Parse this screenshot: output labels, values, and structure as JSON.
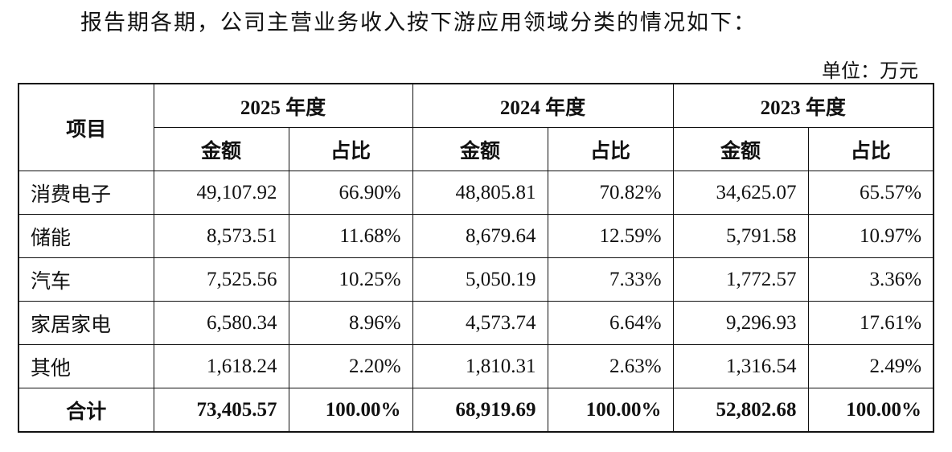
{
  "intro": "报告期各期，公司主营业务收入按下游应用领域分类的情况如下：",
  "unit": "单位：万元",
  "table": {
    "corner": "项目",
    "years": [
      "2025 年度",
      "2024 年度",
      "2023 年度"
    ],
    "subheaders": [
      "金额",
      "占比"
    ],
    "rows": [
      [
        "消费电子",
        "49,107.92",
        "66.90%",
        "48,805.81",
        "70.82%",
        "34,625.07",
        "65.57%"
      ],
      [
        "储能",
        "8,573.51",
        "11.68%",
        "8,679.64",
        "12.59%",
        "5,791.58",
        "10.97%"
      ],
      [
        "汽车",
        "7,525.56",
        "10.25%",
        "5,050.19",
        "7.33%",
        "1,772.57",
        "3.36%"
      ],
      [
        "家居家电",
        "6,580.34",
        "8.96%",
        "4,573.74",
        "6.64%",
        "9,296.93",
        "17.61%"
      ],
      [
        "其他",
        "1,618.24",
        "2.20%",
        "1,810.31",
        "2.63%",
        "1,316.54",
        "2.49%"
      ]
    ],
    "total": [
      "合计",
      "73,405.57",
      "100.00%",
      "68,919.69",
      "100.00%",
      "52,802.68",
      "100.00%"
    ]
  }
}
